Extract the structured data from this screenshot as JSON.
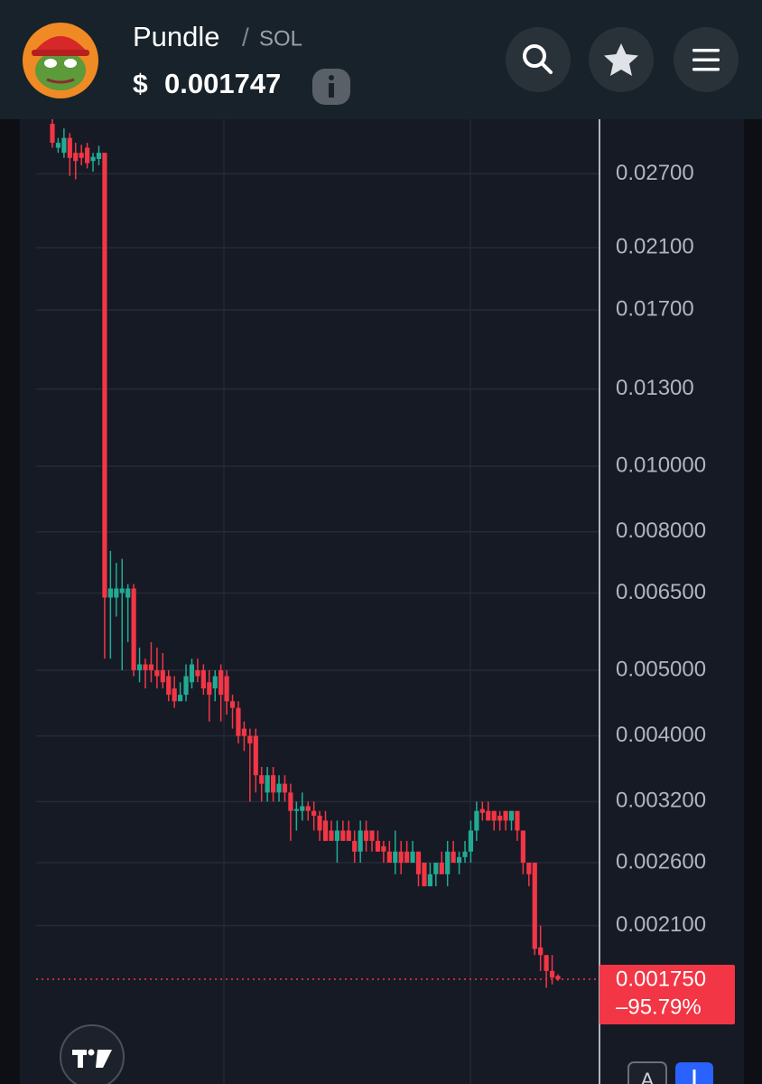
{
  "header": {
    "name": "Pundle",
    "separator": "/",
    "quote": "SOL",
    "currency": "$",
    "price": "0.001747"
  },
  "chart_data": {
    "type": "candlestick",
    "log_scale": true,
    "grid": true,
    "up_color": "#22ab94",
    "down_color": "#f23645",
    "ylim": [
      0.001226,
      0.0325
    ],
    "yticks": [
      {
        "value": 0.027,
        "label": "0.02700"
      },
      {
        "value": 0.021,
        "label": "0.02100"
      },
      {
        "value": 0.017,
        "label": "0.01700"
      },
      {
        "value": 0.013,
        "label": "0.01300"
      },
      {
        "value": 0.01,
        "label": "0.010000"
      },
      {
        "value": 0.008,
        "label": "0.008000"
      },
      {
        "value": 0.0065,
        "label": "0.006500"
      },
      {
        "value": 0.005,
        "label": "0.005000"
      },
      {
        "value": 0.004,
        "label": "0.004000"
      },
      {
        "value": 0.0032,
        "label": "0.003200"
      },
      {
        "value": 0.0026,
        "label": "0.002600"
      },
      {
        "value": 0.0021,
        "label": "0.002100"
      }
    ],
    "last_price": {
      "value": 0.00175,
      "label": "0.001750"
    },
    "change": {
      "value": -95.79,
      "label": "–95.79%"
    },
    "open": [
      0.032,
      0.0295,
      0.029,
      0.0305,
      0.029,
      0.029,
      0.0295,
      0.0282,
      0.0284,
      0.029,
      0.0064,
      0.0064,
      0.0065,
      0.0064,
      0.0066,
      0.005,
      0.0051,
      0.0051,
      0.005,
      0.005,
      0.0049,
      0.0047,
      0.0045,
      0.0046,
      0.0048,
      0.005,
      0.005,
      0.0048,
      0.0047,
      0.005,
      0.0049,
      0.0045,
      0.0044,
      0.0041,
      0.004,
      0.004,
      0.0035,
      0.0033,
      0.0035,
      0.0033,
      0.0034,
      0.0033,
      0.0031,
      0.0031,
      0.00315,
      0.0031,
      0.00305,
      0.003,
      0.0029,
      0.0028,
      0.0029,
      0.0029,
      0.0028,
      0.0027,
      0.0029,
      0.0029,
      0.0028,
      0.00275,
      0.0027,
      0.0026,
      0.0027,
      0.0027,
      0.0026,
      0.0027,
      0.0026,
      0.0024,
      0.0025,
      0.0026,
      0.0025,
      0.0027,
      0.0026,
      0.00265,
      0.0027,
      0.0029,
      0.00312,
      0.0031,
      0.0031,
      0.00305,
      0.0031,
      0.003,
      0.0031,
      0.0029,
      0.0026,
      0.0026,
      0.00195,
      0.0019,
      0.0018,
      0.00177
    ],
    "high": [
      0.033,
      0.0305,
      0.0315,
      0.031,
      0.03,
      0.0298,
      0.03,
      0.029,
      0.0297,
      0.029,
      0.0075,
      0.0072,
      0.0073,
      0.0067,
      0.0067,
      0.0054,
      0.0052,
      0.0055,
      0.0054,
      0.0053,
      0.005,
      0.0049,
      0.0048,
      0.0051,
      0.0052,
      0.0052,
      0.0051,
      0.005,
      0.005,
      0.0051,
      0.005,
      0.0046,
      0.0045,
      0.0042,
      0.0041,
      0.0041,
      0.0036,
      0.0036,
      0.0036,
      0.0035,
      0.0035,
      0.0034,
      0.0032,
      0.0033,
      0.0032,
      0.0032,
      0.0031,
      0.0031,
      0.003,
      0.003,
      0.003,
      0.003,
      0.0029,
      0.003,
      0.003,
      0.0029,
      0.0029,
      0.0028,
      0.0028,
      0.0029,
      0.0028,
      0.0028,
      0.0028,
      0.0027,
      0.0026,
      0.0026,
      0.0026,
      0.0027,
      0.0028,
      0.0028,
      0.0027,
      0.0028,
      0.003,
      0.0032,
      0.0032,
      0.0032,
      0.0031,
      0.0031,
      0.0031,
      0.0031,
      0.0031,
      0.0029,
      0.0026,
      0.0026,
      0.0021,
      0.0019,
      0.0019,
      0.00178
    ],
    "low": [
      0.0295,
      0.029,
      0.0285,
      0.0268,
      0.0265,
      0.0278,
      0.0275,
      0.0272,
      0.0278,
      0.0052,
      0.0052,
      0.006,
      0.005,
      0.0055,
      0.0049,
      0.0048,
      0.0047,
      0.0048,
      0.0047,
      0.0047,
      0.0045,
      0.0044,
      0.0045,
      0.0045,
      0.0047,
      0.0048,
      0.0046,
      0.0042,
      0.0045,
      0.0042,
      0.0043,
      0.0041,
      0.0039,
      0.0038,
      0.0032,
      0.0033,
      0.0032,
      0.0032,
      0.0032,
      0.0032,
      0.0032,
      0.0028,
      0.0029,
      0.003,
      0.003,
      0.0029,
      0.0028,
      0.0028,
      0.0028,
      0.0026,
      0.0028,
      0.0028,
      0.0026,
      0.0026,
      0.0027,
      0.0027,
      0.0027,
      0.0026,
      0.0026,
      0.0025,
      0.0025,
      0.0026,
      0.0026,
      0.0024,
      0.0024,
      0.0024,
      0.0024,
      0.0025,
      0.0024,
      0.0026,
      0.0025,
      0.0026,
      0.0026,
      0.0028,
      0.003,
      0.003,
      0.0029,
      0.0029,
      0.0029,
      0.0029,
      0.0028,
      0.0025,
      0.0024,
      0.0019,
      0.0018,
      0.0017,
      0.00172,
      0.00174
    ],
    "close": [
      0.03,
      0.03,
      0.0305,
      0.0285,
      0.0282,
      0.0285,
      0.028,
      0.0286,
      0.029,
      0.0064,
      0.0066,
      0.0066,
      0.0066,
      0.0066,
      0.005,
      0.0051,
      0.005,
      0.005,
      0.0049,
      0.0048,
      0.0046,
      0.0045,
      0.0046,
      0.0049,
      0.0051,
      0.0049,
      0.0047,
      0.0046,
      0.0049,
      0.0046,
      0.0045,
      0.0044,
      0.004,
      0.004,
      0.0039,
      0.0035,
      0.0034,
      0.0035,
      0.0033,
      0.0034,
      0.0033,
      0.0031,
      0.00312,
      0.00315,
      0.0031,
      0.00305,
      0.0029,
      0.0028,
      0.0028,
      0.0029,
      0.0028,
      0.0028,
      0.0027,
      0.0029,
      0.0028,
      0.0028,
      0.0027,
      0.0027,
      0.0026,
      0.0027,
      0.0026,
      0.0026,
      0.0027,
      0.0025,
      0.0024,
      0.0025,
      0.0026,
      0.0025,
      0.0027,
      0.0026,
      0.00265,
      0.0027,
      0.0029,
      0.0031,
      0.00308,
      0.003,
      0.003,
      0.003,
      0.003,
      0.0031,
      0.0029,
      0.0026,
      0.0025,
      0.00194,
      0.0019,
      0.0018,
      0.00176,
      0.00175
    ]
  },
  "ui": {
    "bottom_button": "A"
  }
}
